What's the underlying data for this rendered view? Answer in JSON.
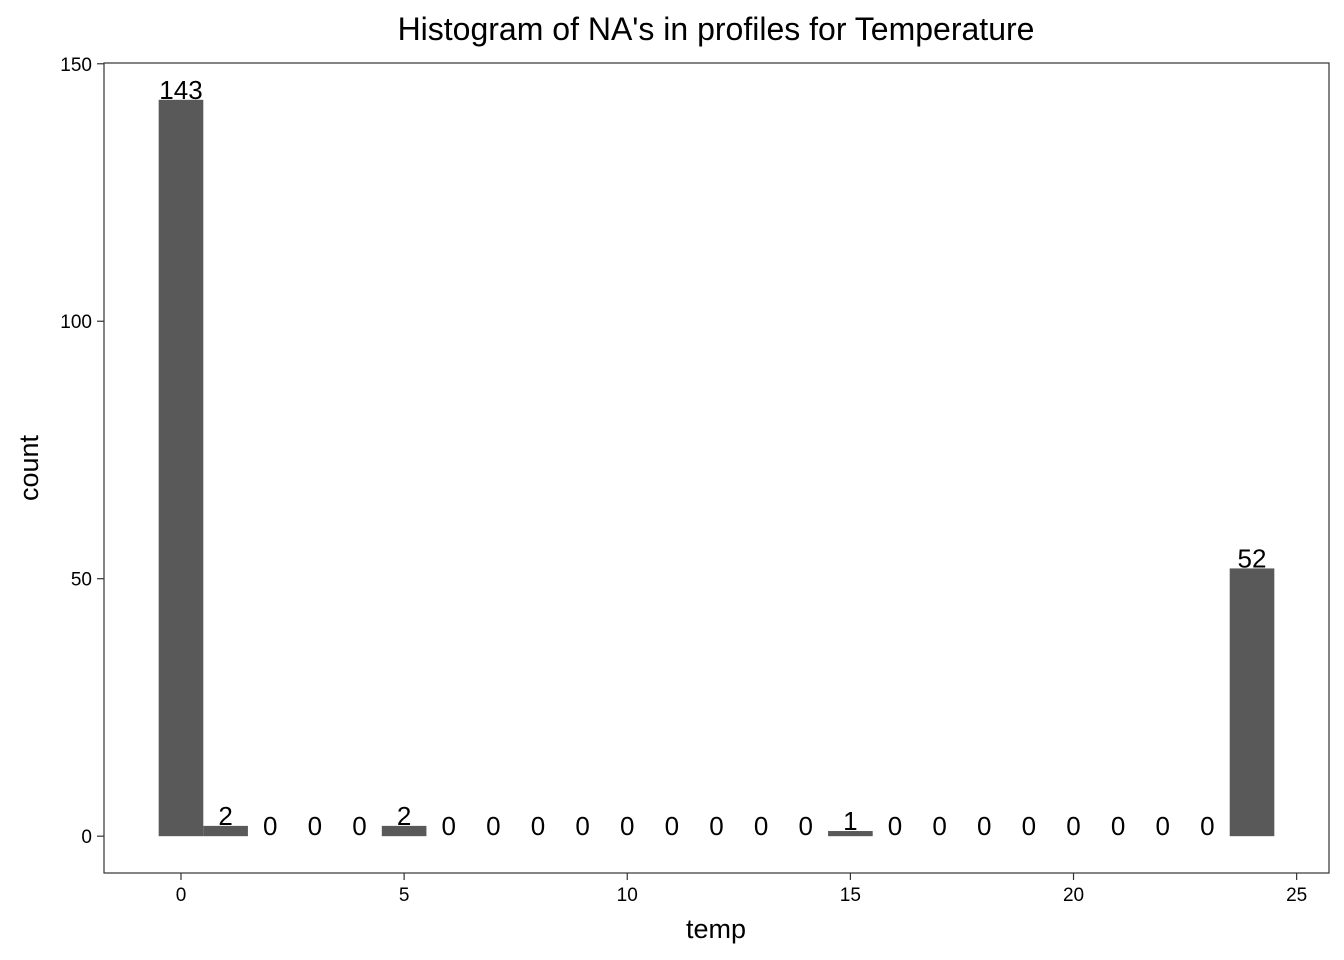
{
  "chart_data": {
    "type": "bar",
    "title": "Histogram of NA's in profiles for Temperature",
    "xlabel": "temp",
    "ylabel": "count",
    "x": [
      0,
      1,
      2,
      3,
      4,
      5,
      6,
      7,
      8,
      9,
      10,
      11,
      12,
      13,
      14,
      15,
      16,
      17,
      18,
      19,
      20,
      21,
      22,
      23,
      24
    ],
    "values": [
      143,
      2,
      0,
      0,
      0,
      2,
      0,
      0,
      0,
      0,
      0,
      0,
      0,
      0,
      0,
      1,
      0,
      0,
      0,
      0,
      0,
      0,
      0,
      0,
      52
    ],
    "labels": [
      "143",
      "2",
      "0",
      "0",
      "0",
      "2",
      "0",
      "0",
      "0",
      "0",
      "0",
      "0",
      "0",
      "0",
      "0",
      "1",
      "0",
      "0",
      "0",
      "0",
      "0",
      "0",
      "0",
      "0",
      "52"
    ],
    "xlim": [
      -1.725,
      25.725
    ],
    "ylim": [
      -7.15,
      150.15
    ],
    "xticks": [
      0,
      5,
      10,
      15,
      20,
      25
    ],
    "xtick_labels": [
      "0",
      "5",
      "10",
      "15",
      "20",
      "25"
    ],
    "yticks": [
      0,
      50,
      100,
      150
    ],
    "ytick_labels": [
      "0",
      "50",
      "100",
      "150"
    ],
    "grid": false,
    "bar_color": "#595959",
    "panel_border_color": "#333333",
    "background": "#ffffff"
  }
}
